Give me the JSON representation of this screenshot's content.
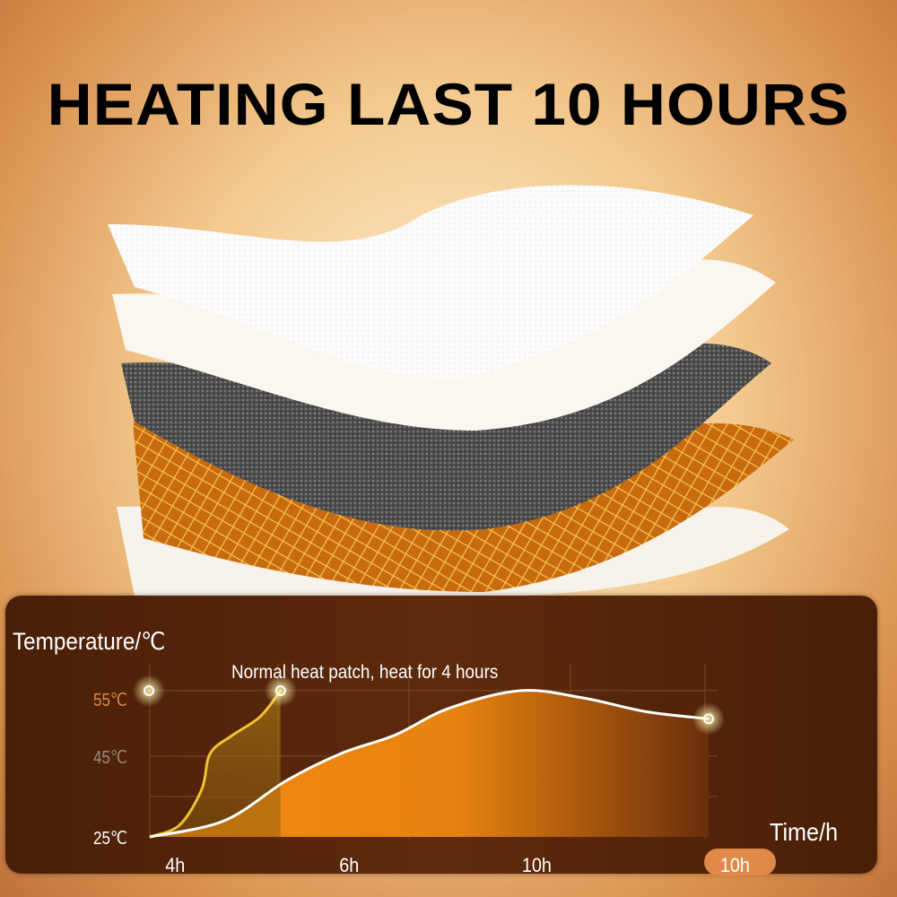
{
  "title": "HEATING LAST 10 HOURS",
  "colors": {
    "panel": "#4f220a",
    "fill": "#e8820f",
    "normal_line": "#f2c230",
    "long_line": "#ffffff",
    "highlight": "#e08a4a"
  },
  "chart_data": {
    "type": "area",
    "ylabel": "Temperature/℃",
    "xlabel": "Time/h",
    "annotation": "Normal heat patch, heat for 4 hours",
    "y_ticks": [
      {
        "label": "55℃",
        "value": 55,
        "color": "#e08a4a"
      },
      {
        "label": "45℃",
        "value": 45,
        "color": "#9b8a80"
      },
      {
        "label": "25℃",
        "value": 25,
        "color": "#ffffff"
      }
    ],
    "x_tick_labels": [
      "4h",
      "6h",
      "10h",
      "10h"
    ],
    "highlighted_x_tick": "10h",
    "xlim": [
      0,
      10
    ],
    "grid": true,
    "series": [
      {
        "color": "#f2c230",
        "points": [
          [
            0,
            25
          ],
          [
            0.53,
            27.9
          ],
          [
            0.93,
            36.8
          ],
          [
            1.08,
            45.4
          ],
          [
            1.48,
            48.2
          ],
          [
            1.97,
            51
          ],
          [
            2.34,
            55
          ]
        ]
      },
      {
        "color": "#ffffff",
        "points": [
          [
            0,
            25
          ],
          [
            1.33,
            29
          ],
          [
            2.45,
            39
          ],
          [
            3.42,
            45.4
          ],
          [
            4.38,
            48.2
          ],
          [
            5.35,
            52.3
          ],
          [
            6.63,
            55
          ],
          [
            7.75,
            53.9
          ],
          [
            8.88,
            51.8
          ],
          [
            10,
            50.7
          ]
        ]
      }
    ]
  }
}
